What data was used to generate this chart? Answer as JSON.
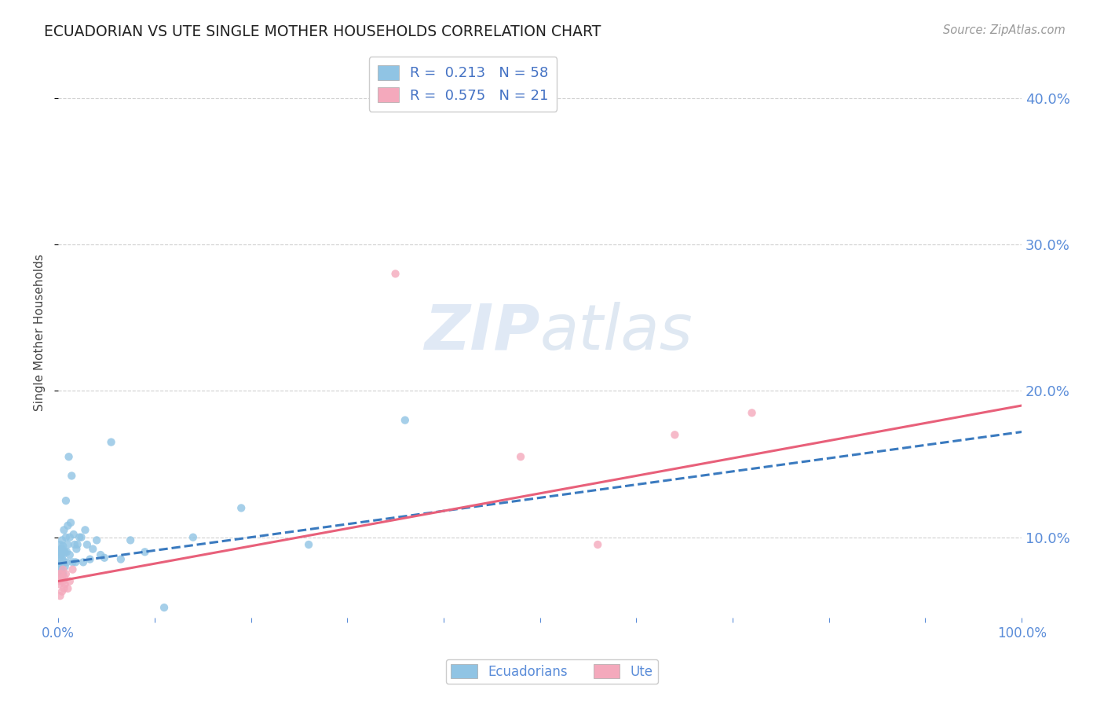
{
  "title": "ECUADORIAN VS UTE SINGLE MOTHER HOUSEHOLDS CORRELATION CHART",
  "source": "Source: ZipAtlas.com",
  "ylabel": "Single Mother Households",
  "ytick_values": [
    0.1,
    0.2,
    0.3,
    0.4
  ],
  "xlim": [
    0.0,
    1.0
  ],
  "ylim": [
    0.045,
    0.435
  ],
  "legend_r_blue": "R =  0.213",
  "legend_n_blue": "N = 58",
  "legend_r_pink": "R =  0.575",
  "legend_n_pink": "N = 21",
  "color_blue": "#90c4e4",
  "color_pink": "#f4a9bc",
  "color_blue_line": "#3a7abf",
  "color_pink_line": "#e8607a",
  "color_text_blue": "#4472c4",
  "color_axis": "#5b8dd9",
  "background": "#ffffff",
  "ecuadorians_x": [
    0.001,
    0.001,
    0.002,
    0.002,
    0.002,
    0.003,
    0.003,
    0.003,
    0.003,
    0.004,
    0.004,
    0.004,
    0.004,
    0.005,
    0.005,
    0.005,
    0.005,
    0.006,
    0.006,
    0.006,
    0.007,
    0.007,
    0.008,
    0.008,
    0.009,
    0.009,
    0.01,
    0.01,
    0.011,
    0.012,
    0.012,
    0.013,
    0.014,
    0.015,
    0.016,
    0.017,
    0.018,
    0.019,
    0.02,
    0.022,
    0.024,
    0.026,
    0.028,
    0.03,
    0.033,
    0.036,
    0.04,
    0.044,
    0.048,
    0.055,
    0.065,
    0.075,
    0.09,
    0.11,
    0.14,
    0.19,
    0.26,
    0.36
  ],
  "ecuadorians_y": [
    0.085,
    0.09,
    0.08,
    0.09,
    0.095,
    0.082,
    0.088,
    0.092,
    0.078,
    0.085,
    0.092,
    0.075,
    0.098,
    0.082,
    0.088,
    0.094,
    0.075,
    0.083,
    0.09,
    0.105,
    0.08,
    0.09,
    0.1,
    0.125,
    0.083,
    0.09,
    0.095,
    0.108,
    0.155,
    0.088,
    0.1,
    0.11,
    0.142,
    0.083,
    0.102,
    0.095,
    0.083,
    0.092,
    0.095,
    0.1,
    0.1,
    0.083,
    0.105,
    0.095,
    0.085,
    0.092,
    0.098,
    0.088,
    0.086,
    0.165,
    0.085,
    0.098,
    0.09,
    0.052,
    0.1,
    0.12,
    0.095,
    0.18
  ],
  "ute_x": [
    0.001,
    0.001,
    0.002,
    0.002,
    0.003,
    0.004,
    0.004,
    0.005,
    0.005,
    0.006,
    0.006,
    0.007,
    0.008,
    0.01,
    0.012,
    0.015,
    0.35,
    0.48,
    0.56,
    0.64,
    0.72
  ],
  "ute_y": [
    0.068,
    0.075,
    0.06,
    0.07,
    0.075,
    0.063,
    0.072,
    0.07,
    0.078,
    0.065,
    0.073,
    0.068,
    0.075,
    0.065,
    0.07,
    0.078,
    0.28,
    0.155,
    0.095,
    0.17,
    0.185
  ],
  "trendline_blue_x0": 0.0,
  "trendline_blue_y0": 0.082,
  "trendline_blue_x1": 1.0,
  "trendline_blue_y1": 0.172,
  "trendline_pink_x0": 0.0,
  "trendline_pink_y0": 0.07,
  "trendline_pink_x1": 1.0,
  "trendline_pink_y1": 0.19
}
